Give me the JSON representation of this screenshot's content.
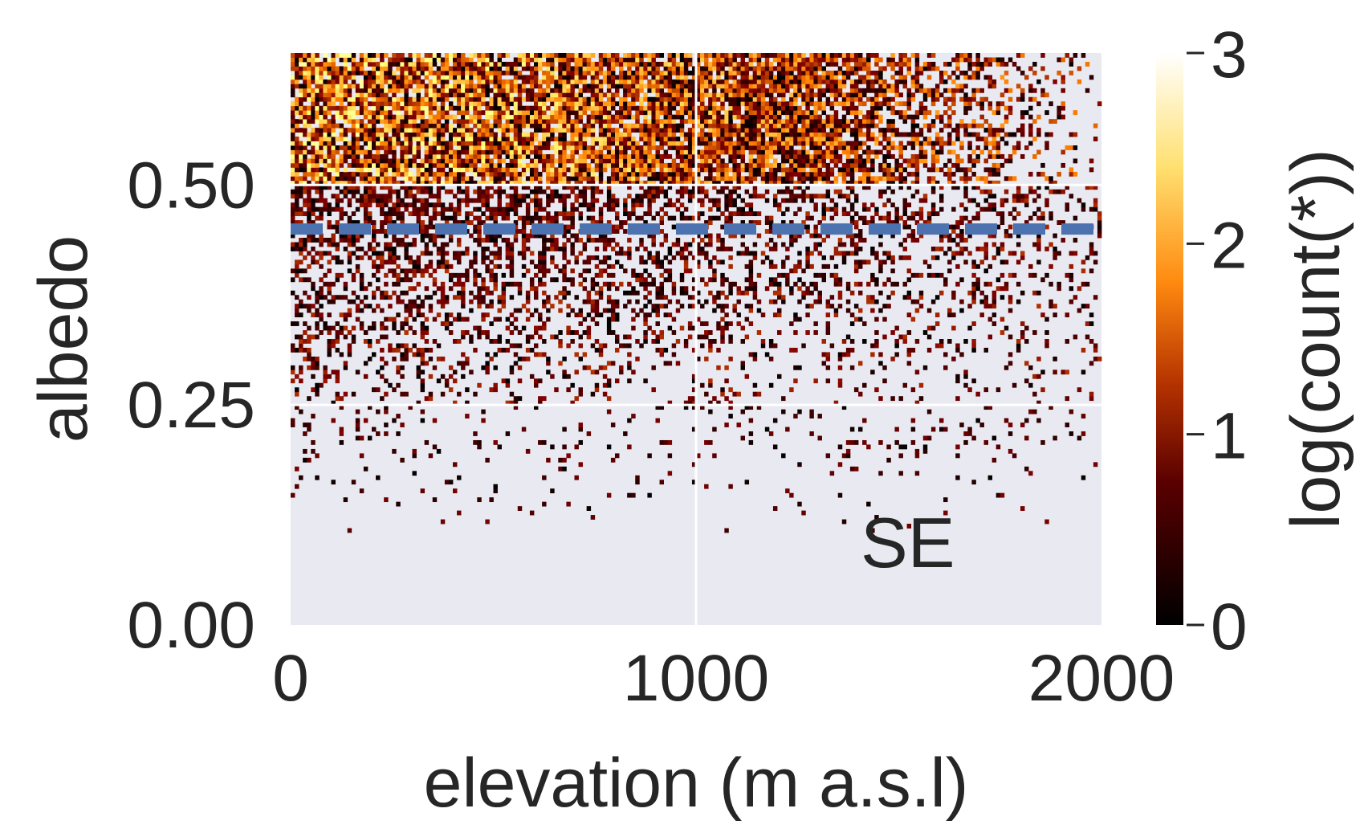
{
  "chart_data": {
    "type": "heatmap",
    "xlabel": "elevation (m a.s.l)",
    "ylabel": "albedo",
    "xlim": [
      0,
      2000
    ],
    "ylim": [
      0,
      0.65
    ],
    "x_ticks": [
      0,
      1000,
      2000
    ],
    "x_tick_labels": [
      "0",
      "1000",
      "2000"
    ],
    "y_ticks": [
      0.0,
      0.25,
      0.5
    ],
    "y_tick_labels": [
      "0.00",
      "0.25",
      "0.50"
    ],
    "grid": true,
    "background": "#e9e9f1",
    "colormap": "afmhot",
    "colorbar": {
      "label": "log(count(*))",
      "range": [
        0,
        3
      ],
      "ticks": [
        0,
        1,
        2,
        3
      ],
      "tick_labels": [
        "0",
        "1",
        "2",
        "3"
      ]
    },
    "reference_line": {
      "orientation": "horizontal",
      "y": 0.45,
      "style": "dashed",
      "color": "#4c72b0"
    },
    "annotation": "SE",
    "density_summary": [
      {
        "albedo_range": [
          0.5,
          0.65
        ],
        "elevation_range": [
          0,
          1800
        ],
        "log_count_range": [
          0.5,
          2.6
        ],
        "note": "densest band"
      },
      {
        "albedo_range": [
          0.25,
          0.5
        ],
        "elevation_range": [
          0,
          2000
        ],
        "log_count_range": [
          0,
          1.2
        ]
      },
      {
        "albedo_range": [
          0.1,
          0.25
        ],
        "elevation_range": [
          0,
          1900
        ],
        "log_count_range": [
          0,
          0.8
        ],
        "note": "sparse"
      }
    ]
  }
}
